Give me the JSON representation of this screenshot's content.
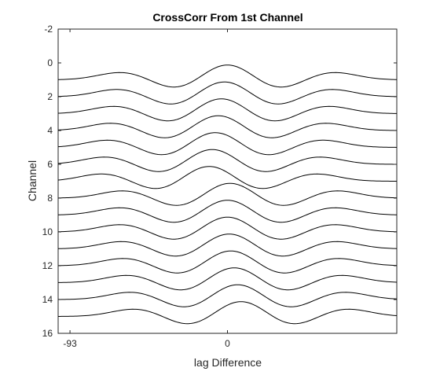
{
  "chart_data": {
    "type": "line",
    "title": "CrossCorr From 1st Channel",
    "xlabel": "lag Difference",
    "ylabel": "Channel",
    "xlim": [
      -100,
      100
    ],
    "ylim": [
      -2,
      16
    ],
    "y_reversed": true,
    "x_ticks": [
      -93,
      0
    ],
    "y_ticks": [
      -2,
      0,
      2,
      4,
      6,
      8,
      10,
      12,
      14,
      16
    ],
    "grid": false,
    "line_color": "#000000",
    "series": [
      {
        "baseline": 1,
        "phase_shift": 0,
        "amplitude": 1
      },
      {
        "baseline": 2,
        "phase_shift": -1.8,
        "amplitude": 1
      },
      {
        "baseline": 3,
        "phase_shift": -3.6,
        "amplitude": 1
      },
      {
        "baseline": 4,
        "phase_shift": -5.4,
        "amplitude": 1
      },
      {
        "baseline": 5,
        "phase_shift": -7.2,
        "amplitude": 1
      },
      {
        "baseline": 6,
        "phase_shift": -9.0,
        "amplitude": 1
      },
      {
        "baseline": 7,
        "phase_shift": -10.8,
        "amplitude": 1
      },
      {
        "baseline": 8,
        "phase_shift": 1.5,
        "amplitude": 1
      },
      {
        "baseline": 9,
        "phase_shift": 0.0,
        "amplitude": 1
      },
      {
        "baseline": 10,
        "phase_shift": 0.0,
        "amplitude": 1
      },
      {
        "baseline": 11,
        "phase_shift": 1.0,
        "amplitude": 1
      },
      {
        "baseline": 12,
        "phase_shift": 2.0,
        "amplitude": 1
      },
      {
        "baseline": 13,
        "phase_shift": 4.0,
        "amplitude": 1
      },
      {
        "baseline": 14,
        "phase_shift": 6.0,
        "amplitude": 1
      },
      {
        "baseline": 15,
        "phase_shift": 8.0,
        "amplitude": 1
      }
    ]
  }
}
